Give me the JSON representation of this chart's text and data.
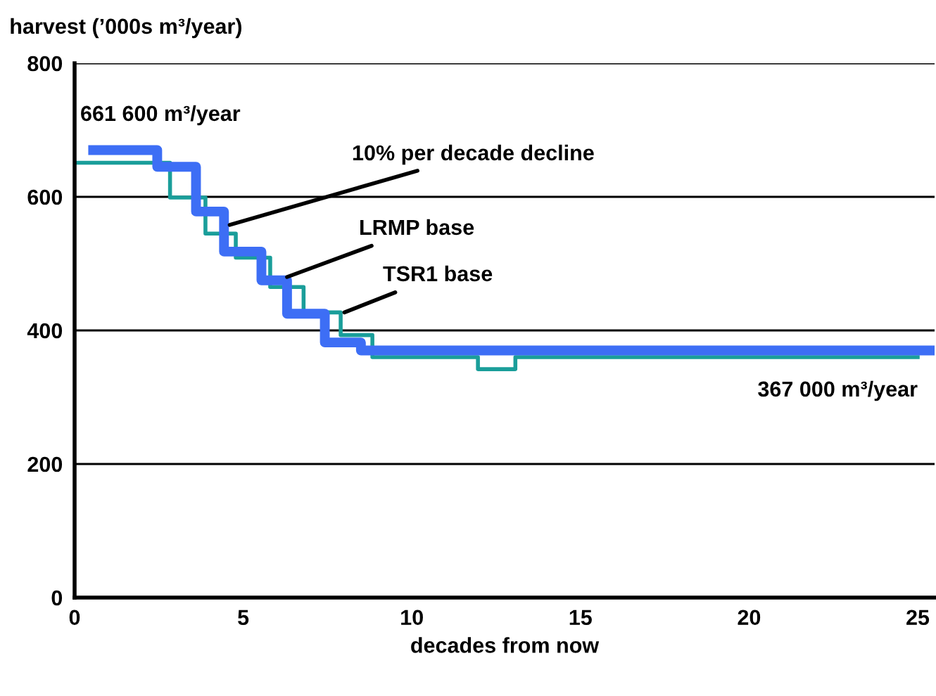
{
  "chart_data": {
    "type": "step",
    "ylabel": "harvest (’000s m³/year)",
    "xlabel": "decades from now",
    "series": [
      {
        "color": "#3d6ef5",
        "x": [
          0.55,
          2.45,
          3.6,
          4.43,
          5.54,
          6.3,
          7.42,
          8.49,
          25.5
        ],
        "values": [
          670,
          645,
          578,
          518,
          475,
          425,
          382,
          370,
          370
        ]
      },
      {
        "color": "#1a9e9a",
        "x": [
          0,
          2.83,
          3.88,
          4.78,
          5.8,
          6.79,
          7.89,
          8.83,
          11.96,
          13.07,
          25
        ],
        "values": [
          651,
          599,
          545,
          509,
          465,
          427,
          393,
          360,
          342,
          360,
          360
        ]
      }
    ],
    "annotations": [
      "661 600 m³/year",
      {
        "text": "10% per decade decline",
        "x": 4.6,
        "y": 558
      },
      {
        "text": "LRMP base",
        "x": 6.3,
        "y": 480
      },
      {
        "text": "TSR1 base",
        "x": 8.0,
        "y": 427
      },
      "367 000 m³/year"
    ],
    "xlim": [
      0,
      25.5
    ],
    "xticks": [
      0,
      5,
      10,
      15,
      20,
      25
    ],
    "ylim": [
      0,
      800
    ],
    "yticks": [
      0,
      200,
      400,
      600,
      800
    ],
    "grid": "y",
    "legend": false
  }
}
